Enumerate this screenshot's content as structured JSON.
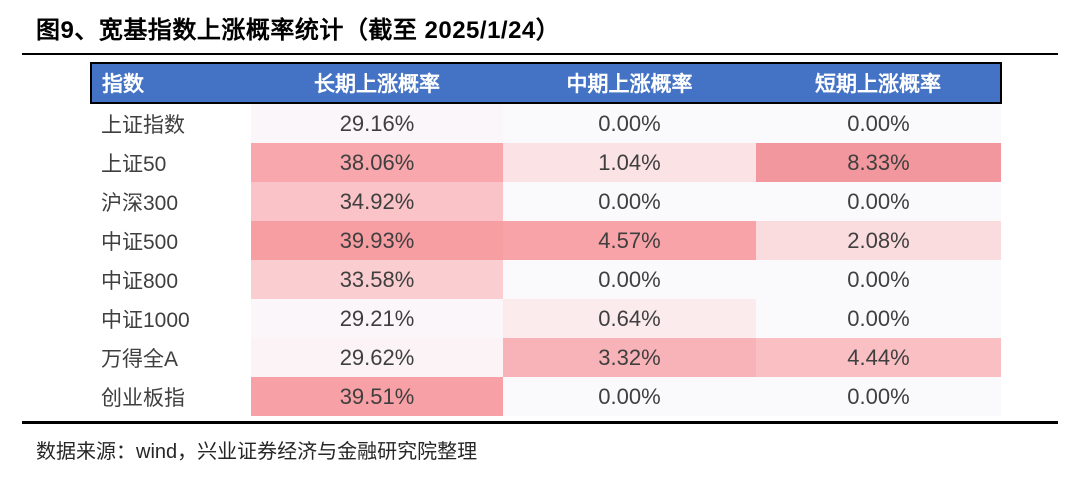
{
  "figure": {
    "title": "图9、宽基指数上涨概率统计（截至 2025/1/24）",
    "source_note": "数据来源：wind，兴业证券经济与金融研究院整理"
  },
  "colors": {
    "header_bg": "#4472C4",
    "header_text": "#FFFFFF",
    "body_text": "#3F3F3F",
    "divider": "#000000"
  },
  "chart_data": {
    "type": "table",
    "title": "宽基指数上涨概率统计",
    "as_of": "2025/1/24",
    "unit": "%",
    "columns": [
      "指数",
      "长期上涨概率",
      "中期上涨概率",
      "短期上涨概率"
    ],
    "rows": [
      {
        "name": "上证指数",
        "values": [
          29.16,
          0.0,
          0.0
        ],
        "display": [
          "29.16%",
          "0.00%",
          "0.00%"
        ],
        "heat": [
          "#FBF6F9",
          "#FAF9FC",
          "#FAF9FC"
        ]
      },
      {
        "name": "上证50",
        "values": [
          38.06,
          1.04,
          8.33
        ],
        "display": [
          "38.06%",
          "1.04%",
          "8.33%"
        ],
        "heat": [
          "#F8A7AC",
          "#FBE2E4",
          "#F2979D"
        ]
      },
      {
        "name": "沪深300",
        "values": [
          34.92,
          0.0,
          0.0
        ],
        "display": [
          "34.92%",
          "0.00%",
          "0.00%"
        ],
        "heat": [
          "#F9C3C7",
          "#FAF9FC",
          "#FAF9FC"
        ]
      },
      {
        "name": "中证500",
        "values": [
          39.93,
          4.57,
          2.08
        ],
        "display": [
          "39.93%",
          "4.57%",
          "2.08%"
        ],
        "heat": [
          "#F79EA3",
          "#F7A3A8",
          "#FBDCDE"
        ]
      },
      {
        "name": "中证800",
        "values": [
          33.58,
          0.0,
          0.0
        ],
        "display": [
          "33.58%",
          "0.00%",
          "0.00%"
        ],
        "heat": [
          "#FACDD0",
          "#FAF9FC",
          "#FAF9FC"
        ]
      },
      {
        "name": "中证1000",
        "values": [
          29.21,
          0.64,
          0.0
        ],
        "display": [
          "29.21%",
          "0.64%",
          "0.00%"
        ],
        "heat": [
          "#FBF6F9",
          "#FCEBED",
          "#FAF9FC"
        ]
      },
      {
        "name": "万得全A",
        "values": [
          29.62,
          3.32,
          4.44
        ],
        "display": [
          "29.62%",
          "3.32%",
          "4.44%"
        ],
        "heat": [
          "#FBF3F6",
          "#F8B3B8",
          "#F9BFC3"
        ]
      },
      {
        "name": "创业板指",
        "values": [
          39.51,
          0.0,
          0.0
        ],
        "display": [
          "39.51%",
          "0.00%",
          "0.00%"
        ],
        "heat": [
          "#F7A1A6",
          "#FAF9FC",
          "#FAF9FC"
        ]
      }
    ]
  }
}
